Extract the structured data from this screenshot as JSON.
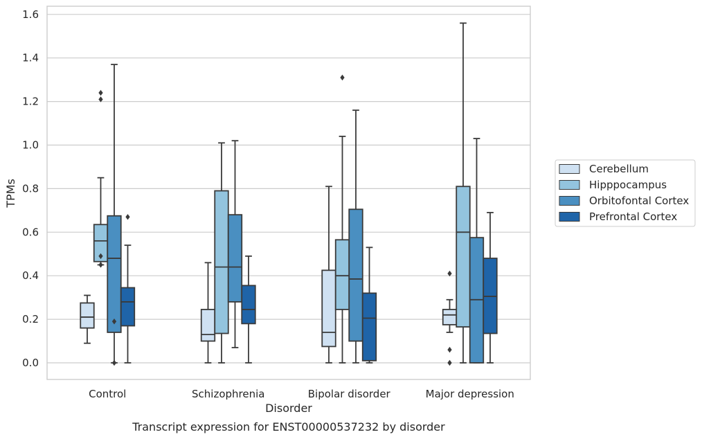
{
  "caption": "Transcript expression for ENST00000537232 by disorder",
  "chart_data": {
    "type": "box",
    "xlabel": "Disorder",
    "ylabel": "TPMs",
    "ylim": [
      -0.075,
      1.645
    ],
    "yticks": [
      0.0,
      0.2,
      0.4,
      0.6,
      0.8,
      1.0,
      1.2,
      1.4,
      1.6
    ],
    "ytick_labels": [
      "0.0",
      "0.2",
      "0.4",
      "0.6",
      "0.8",
      "1.0",
      "1.2",
      "1.4",
      "1.6"
    ],
    "grid": "horizontal",
    "legend_position": "right",
    "categories": [
      "Control",
      "Schizophrenia",
      "Bipolar disorder",
      "Major depression"
    ],
    "series": [
      {
        "name": "Cerebellum",
        "color": "#cfe1f2",
        "boxes": [
          {
            "whisker_low": 0.09,
            "q1": 0.16,
            "median": 0.21,
            "q3": 0.275,
            "whisker_high": 0.31,
            "outliers": []
          },
          {
            "whisker_low": 0.0,
            "q1": 0.1,
            "median": 0.13,
            "q3": 0.245,
            "whisker_high": 0.46,
            "outliers": []
          },
          {
            "whisker_low": 0.0,
            "q1": 0.075,
            "median": 0.14,
            "q3": 0.425,
            "whisker_high": 0.81,
            "outliers": []
          },
          {
            "whisker_low": 0.14,
            "q1": 0.175,
            "median": 0.22,
            "q3": 0.245,
            "whisker_high": 0.29,
            "outliers": [
              0.41,
              0.06,
              0.0
            ]
          }
        ]
      },
      {
        "name": "Hipppocampus",
        "color": "#93c4de",
        "boxes": [
          {
            "whisker_low": 0.45,
            "q1": 0.465,
            "median": 0.56,
            "q3": 0.635,
            "whisker_high": 0.85,
            "outliers": [
              1.24,
              1.21,
              0.49,
              0.45
            ]
          },
          {
            "whisker_low": 0.0,
            "q1": 0.135,
            "median": 0.44,
            "q3": 0.79,
            "whisker_high": 1.01,
            "outliers": []
          },
          {
            "whisker_low": 0.0,
            "q1": 0.245,
            "median": 0.4,
            "q3": 0.565,
            "whisker_high": 1.04,
            "outliers": [
              1.31
            ]
          },
          {
            "whisker_low": 0.0,
            "q1": 0.165,
            "median": 0.6,
            "q3": 0.81,
            "whisker_high": 1.56,
            "outliers": []
          }
        ]
      },
      {
        "name": "Orbitofontal Cortex",
        "color": "#4a8fc1",
        "boxes": [
          {
            "whisker_low": 0.0,
            "q1": 0.14,
            "median": 0.48,
            "q3": 0.675,
            "whisker_high": 1.37,
            "outliers": [
              0.19,
              0.0
            ]
          },
          {
            "whisker_low": 0.07,
            "q1": 0.28,
            "median": 0.44,
            "q3": 0.68,
            "whisker_high": 1.02,
            "outliers": []
          },
          {
            "whisker_low": 0.0,
            "q1": 0.1,
            "median": 0.385,
            "q3": 0.705,
            "whisker_high": 1.16,
            "outliers": []
          },
          {
            "whisker_low": 0.0,
            "q1": 0.0,
            "median": 0.29,
            "q3": 0.575,
            "whisker_high": 1.03,
            "outliers": []
          }
        ]
      },
      {
        "name": "Prefrontal Cortex",
        "color": "#1f64a8",
        "boxes": [
          {
            "whisker_low": 0.0,
            "q1": 0.17,
            "median": 0.28,
            "q3": 0.345,
            "whisker_high": 0.54,
            "outliers": [
              0.67
            ]
          },
          {
            "whisker_low": 0.0,
            "q1": 0.18,
            "median": 0.245,
            "q3": 0.355,
            "whisker_high": 0.49,
            "outliers": []
          },
          {
            "whisker_low": 0.0,
            "q1": 0.01,
            "median": 0.205,
            "q3": 0.32,
            "whisker_high": 0.53,
            "outliers": []
          },
          {
            "whisker_low": 0.0,
            "q1": 0.135,
            "median": 0.305,
            "q3": 0.48,
            "whisker_high": 0.69,
            "outliers": []
          }
        ]
      }
    ]
  }
}
